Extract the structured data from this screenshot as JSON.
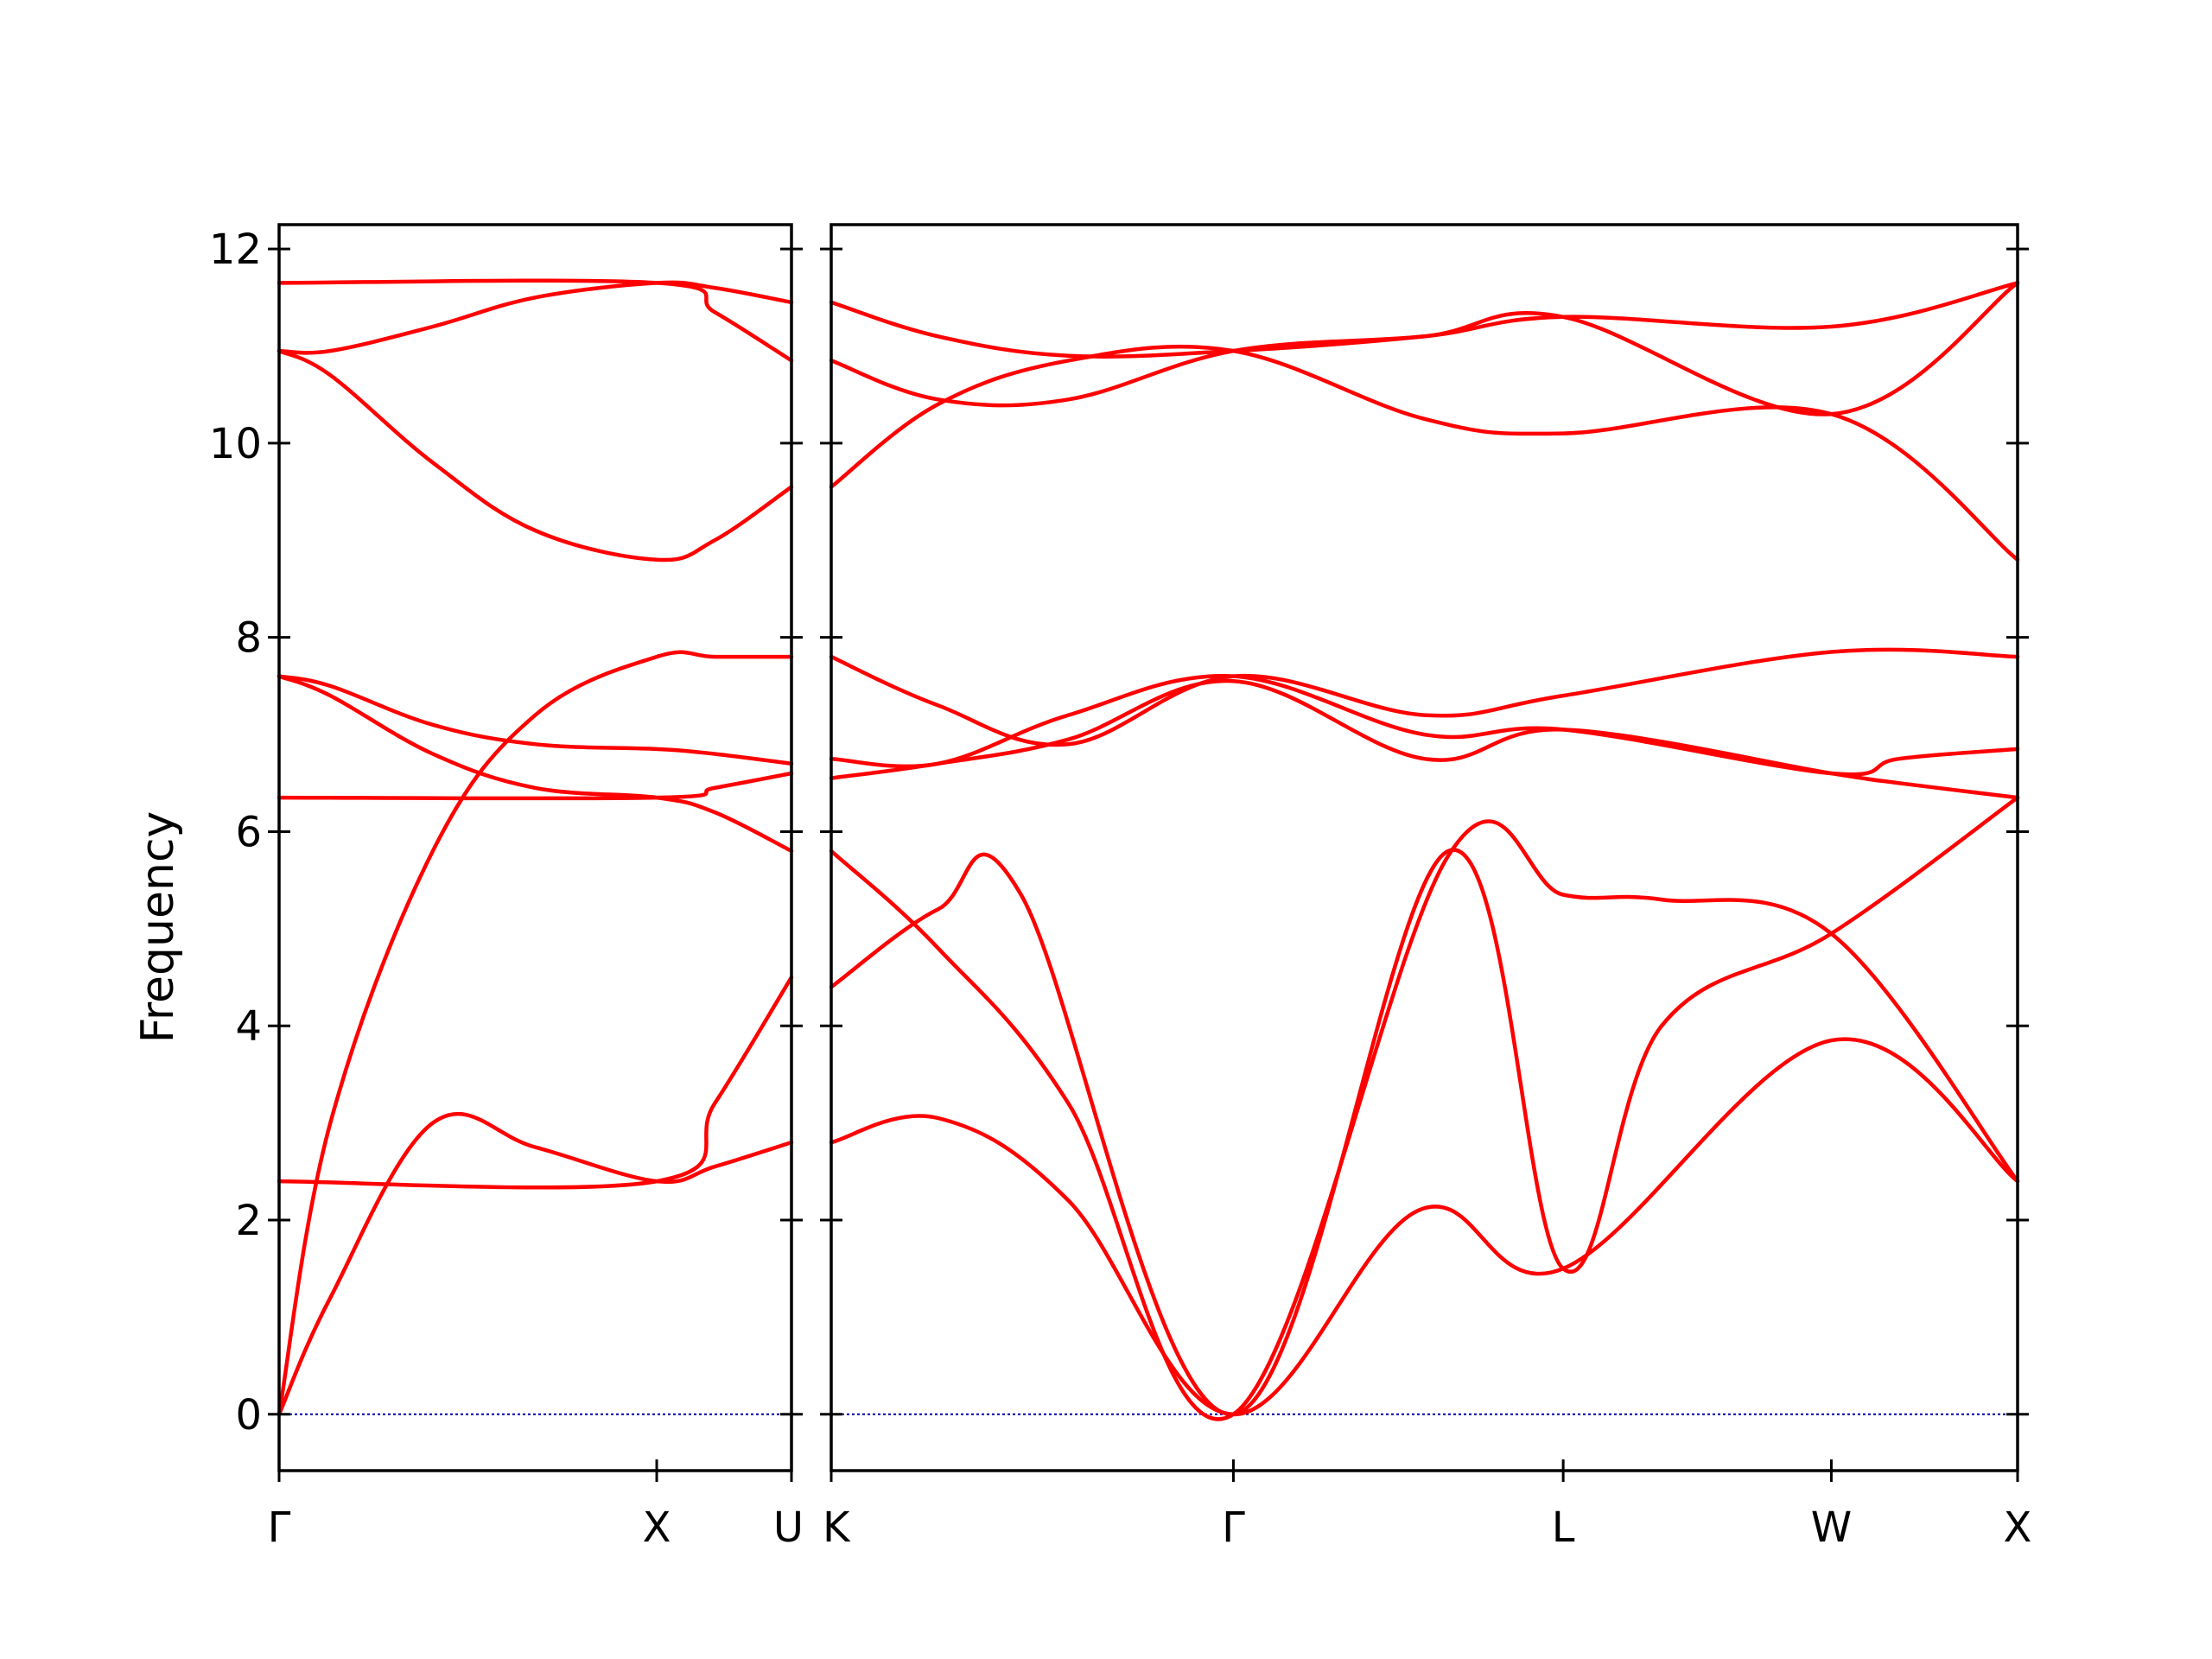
{
  "chart_data": {
    "type": "line",
    "ylabel": "Frequency",
    "ylim": [
      -0.58,
      12.25
    ],
    "yticks": [
      0,
      2,
      4,
      6,
      8,
      10,
      12
    ],
    "ytick_labels": [
      "0",
      "2",
      "4",
      "6",
      "8",
      "10",
      "12"
    ],
    "line_color": "#ff0000",
    "zero_line_color": "#0000aa",
    "grid": false,
    "panels": [
      {
        "name": "Γ-X-U",
        "xlim": [
          0,
          1
        ],
        "xticks": [
          0,
          0.737,
          1
        ],
        "xtick_labels": [
          "Γ",
          "X",
          "U"
        ],
        "series": [
          {
            "x": [
              0,
              0.1,
              0.3,
              0.5,
              0.737,
              0.85,
              1
            ],
            "y": [
              0,
              1.2,
              3.0,
              2.75,
              2.4,
              2.55,
              2.8
            ]
          },
          {
            "x": [
              0,
              0.1,
              0.3,
              0.5,
              0.737,
              0.85,
              1
            ],
            "y": [
              0,
              3.0,
              5.8,
              7.2,
              7.8,
              7.8,
              7.8
            ]
          },
          {
            "x": [
              0,
              0.1,
              0.3,
              0.5,
              0.737,
              0.85,
              1
            ],
            "y": [
              7.6,
              7.4,
              6.8,
              6.45,
              6.35,
              6.2,
              5.8
            ]
          },
          {
            "x": [
              0,
              0.1,
              0.3,
              0.5,
              0.737,
              0.85,
              1
            ],
            "y": [
              7.6,
              7.5,
              7.1,
              6.9,
              6.85,
              6.8,
              6.7
            ]
          },
          {
            "x": [
              0,
              0.737,
              0.85,
              1
            ],
            "y": [
              2.4,
              2.4,
              3.2,
              4.5
            ]
          },
          {
            "x": [
              0,
              0.737,
              0.85,
              1
            ],
            "y": [
              6.35,
              6.35,
              6.45,
              6.6
            ]
          },
          {
            "x": [
              0,
              0.1,
              0.3,
              0.5,
              0.737,
              0.85,
              1
            ],
            "y": [
              10.95,
              10.7,
              9.8,
              9.1,
              8.8,
              9.0,
              9.55
            ]
          },
          {
            "x": [
              0,
              0.1,
              0.3,
              0.5,
              0.737,
              0.85,
              1
            ],
            "y": [
              10.95,
              10.95,
              11.2,
              11.5,
              11.65,
              11.6,
              11.45
            ]
          },
          {
            "x": [
              0,
              0.737,
              0.85,
              1
            ],
            "y": [
              11.65,
              11.65,
              11.35,
              10.85
            ]
          }
        ]
      },
      {
        "name": "K-Γ-L-W-X",
        "xlim": [
          0,
          1
        ],
        "xticks": [
          0,
          0.339,
          0.617,
          0.843,
          1
        ],
        "xtick_labels": [
          "K",
          "Γ",
          "L",
          "W",
          "X"
        ],
        "series": [
          {
            "x": [
              0,
              0.09,
              0.2,
              0.339,
              0.495,
              0.617,
              0.843,
              1
            ],
            "y": [
              2.8,
              3.05,
              2.2,
              0,
              2.1,
              1.5,
              3.85,
              2.4
            ]
          },
          {
            "x": [
              0,
              0.09,
              0.2,
              0.339,
              0.52,
              0.617,
              0.7,
              0.843,
              1
            ],
            "y": [
              5.8,
              4.8,
              3.2,
              0,
              5.75,
              5.35,
              5.3,
              4.95,
              2.4
            ]
          },
          {
            "x": [
              0,
              0.09,
              0.16,
              0.339,
              0.52,
              0.617,
              0.7,
              0.843,
              1
            ],
            "y": [
              4.4,
              5.2,
              5.35,
              0,
              5.8,
              1.5,
              4.0,
              4.95,
              6.35
            ]
          },
          {
            "x": [
              0,
              0.09,
              0.2,
              0.339,
              0.5,
              0.617,
              0.843,
              0.9,
              1
            ],
            "y": [
              6.55,
              6.7,
              6.95,
              7.55,
              6.75,
              7.05,
              6.6,
              6.5,
              6.35
            ]
          },
          {
            "x": [
              0,
              0.09,
              0.2,
              0.339,
              0.5,
              0.617,
              0.843,
              0.9,
              1
            ],
            "y": [
              6.75,
              6.7,
              7.2,
              7.6,
              7.0,
              7.05,
              6.6,
              6.75,
              6.85
            ]
          },
          {
            "x": [
              0,
              0.09,
              0.2,
              0.339,
              0.5,
              0.617,
              0.843,
              1
            ],
            "y": [
              7.8,
              7.3,
              6.9,
              7.6,
              7.2,
              7.4,
              7.85,
              7.8
            ]
          },
          {
            "x": [
              0,
              0.09,
              0.2,
              0.339,
              0.5,
              0.617,
              0.843,
              1
            ],
            "y": [
              9.55,
              10.4,
              10.85,
              10.95,
              10.25,
              10.1,
              10.3,
              8.8
            ]
          },
          {
            "x": [
              0,
              0.09,
              0.2,
              0.339,
              0.5,
              0.617,
              0.843,
              1
            ],
            "y": [
              10.85,
              10.45,
              10.45,
              10.95,
              11.1,
              11.3,
              10.3,
              11.65
            ]
          },
          {
            "x": [
              0,
              0.09,
              0.2,
              0.339,
              0.5,
              0.617,
              0.843,
              1
            ],
            "y": [
              11.45,
              11.1,
              10.9,
              10.95,
              11.1,
              11.3,
              11.2,
              11.65
            ]
          }
        ]
      }
    ]
  }
}
